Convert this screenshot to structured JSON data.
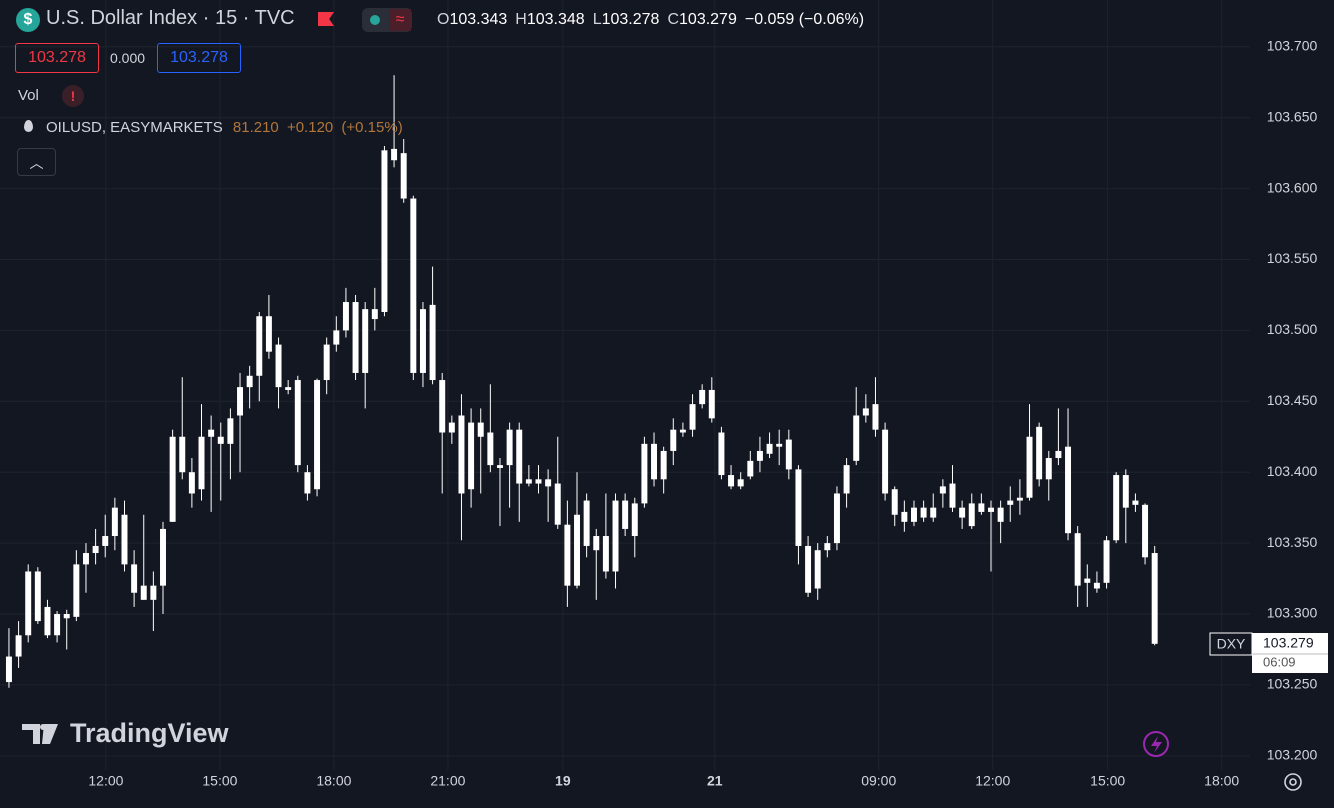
{
  "chart_data": {
    "type": "candlestick",
    "title": "U.S. Dollar Index · 15 · TVC",
    "color": "#ffffff",
    "grid": true,
    "open": [
      103.252,
      103.27,
      103.285,
      103.33,
      103.285,
      103.285,
      103.3,
      103.298,
      103.335,
      103.343,
      103.348,
      103.355,
      103.37,
      103.335,
      103.32,
      103.31,
      103.32,
      103.365,
      103.425,
      103.4,
      103.388,
      103.425,
      103.425,
      103.42,
      103.44,
      103.46,
      103.468,
      103.51,
      103.49,
      103.46,
      103.465,
      103.4,
      103.388,
      103.465,
      103.49,
      103.5,
      103.52,
      103.47,
      103.515,
      103.513,
      103.628,
      103.625,
      103.593,
      103.47,
      103.518,
      103.465,
      103.428,
      103.44,
      103.388,
      103.435,
      103.428,
      103.405,
      103.405,
      103.43,
      103.392,
      103.395,
      103.395,
      103.392,
      103.363,
      103.32,
      103.38,
      103.345,
      103.355,
      103.33,
      103.38,
      103.355,
      103.378,
      103.42,
      103.395,
      103.415,
      103.428,
      103.43,
      103.448,
      103.458,
      103.428,
      103.398,
      103.39,
      103.397,
      103.408,
      103.413,
      103.42,
      103.423,
      103.402,
      103.348,
      103.318,
      103.345,
      103.35,
      103.385,
      103.408,
      103.44,
      103.448,
      103.43,
      103.388,
      103.372,
      103.365,
      103.375,
      103.368,
      103.385,
      103.392,
      103.375,
      103.362,
      103.378,
      103.375,
      103.375,
      103.377,
      103.38,
      103.382,
      103.432,
      103.395,
      103.41,
      103.418,
      103.357,
      103.322,
      103.318,
      103.322,
      103.352,
      103.398,
      103.38,
      103.377,
      103.343
    ],
    "high": [
      103.29,
      103.295,
      103.335,
      103.333,
      103.31,
      103.302,
      103.303,
      103.345,
      103.35,
      103.36,
      103.37,
      103.382,
      103.38,
      103.345,
      103.37,
      103.33,
      103.365,
      103.43,
      103.467,
      103.41,
      103.448,
      103.44,
      103.435,
      103.445,
      103.47,
      103.475,
      103.513,
      103.525,
      103.495,
      103.465,
      103.468,
      103.405,
      103.466,
      103.495,
      103.51,
      103.53,
      103.525,
      103.52,
      103.53,
      103.63,
      103.68,
      103.635,
      103.595,
      103.52,
      103.545,
      103.47,
      103.44,
      103.455,
      103.445,
      103.445,
      103.462,
      103.41,
      103.435,
      103.435,
      103.405,
      103.405,
      103.402,
      103.425,
      103.38,
      103.4,
      103.385,
      103.36,
      103.385,
      103.385,
      103.385,
      103.382,
      103.425,
      103.428,
      103.418,
      103.438,
      103.435,
      103.455,
      103.462,
      103.467,
      103.432,
      103.405,
      103.4,
      103.415,
      103.425,
      103.428,
      103.43,
      103.43,
      103.405,
      103.355,
      103.35,
      103.355,
      103.39,
      103.41,
      103.46,
      103.455,
      103.467,
      103.435,
      103.39,
      103.38,
      103.38,
      103.38,
      103.385,
      103.395,
      103.405,
      103.38,
      103.385,
      103.385,
      103.38,
      103.38,
      103.39,
      103.395,
      103.448,
      103.435,
      103.415,
      103.445,
      103.445,
      103.362,
      103.335,
      103.33,
      103.355,
      103.4,
      103.402,
      103.385,
      103.378,
      103.348
    ],
    "low": [
      103.248,
      103.262,
      103.28,
      103.293,
      103.283,
      103.28,
      103.275,
      103.295,
      103.315,
      103.335,
      103.34,
      103.345,
      103.33,
      103.305,
      103.31,
      103.288,
      103.3,
      103.365,
      103.395,
      103.375,
      103.38,
      103.372,
      103.38,
      103.395,
      103.4,
      103.445,
      103.45,
      103.48,
      103.445,
      103.455,
      103.4,
      103.38,
      103.383,
      103.455,
      103.485,
      103.495,
      103.465,
      103.445,
      103.5,
      103.51,
      103.615,
      103.59,
      103.465,
      103.46,
      103.462,
      103.385,
      103.42,
      103.352,
      103.375,
      103.385,
      103.4,
      103.362,
      103.375,
      103.365,
      103.39,
      103.385,
      103.365,
      103.36,
      103.305,
      103.318,
      103.34,
      103.31,
      103.325,
      103.318,
      103.355,
      103.34,
      103.375,
      103.39,
      103.385,
      103.405,
      103.425,
      103.425,
      103.445,
      103.435,
      103.395,
      103.388,
      103.388,
      103.395,
      103.4,
      103.41,
      103.405,
      103.395,
      103.335,
      103.312,
      103.31,
      103.34,
      103.345,
      103.375,
      103.405,
      103.435,
      103.425,
      103.38,
      103.362,
      103.358,
      103.362,
      103.365,
      103.365,
      103.375,
      103.372,
      103.36,
      103.36,
      103.37,
      103.33,
      103.35,
      103.365,
      103.37,
      103.38,
      103.39,
      103.38,
      103.405,
      103.352,
      103.305,
      103.305,
      103.315,
      103.318,
      103.35,
      103.35,
      103.372,
      103.335,
      103.278
    ],
    "close": [
      103.27,
      103.285,
      103.33,
      103.295,
      103.305,
      103.3,
      103.297,
      103.335,
      103.343,
      103.348,
      103.355,
      103.375,
      103.335,
      103.315,
      103.31,
      103.32,
      103.36,
      103.425,
      103.4,
      103.385,
      103.425,
      103.43,
      103.42,
      103.438,
      103.46,
      103.468,
      103.51,
      103.485,
      103.46,
      103.458,
      103.405,
      103.385,
      103.465,
      103.49,
      103.5,
      103.52,
      103.47,
      103.515,
      103.508,
      103.627,
      103.62,
      103.593,
      103.47,
      103.515,
      103.465,
      103.428,
      103.435,
      103.385,
      103.435,
      103.425,
      103.405,
      103.403,
      103.43,
      103.392,
      103.395,
      103.392,
      103.39,
      103.363,
      103.32,
      103.37,
      103.348,
      103.355,
      103.33,
      103.38,
      103.36,
      103.378,
      103.42,
      103.395,
      103.415,
      103.43,
      103.43,
      103.448,
      103.458,
      103.438,
      103.398,
      103.39,
      103.395,
      103.408,
      103.415,
      103.42,
      103.418,
      103.402,
      103.348,
      103.315,
      103.345,
      103.35,
      103.385,
      103.405,
      103.44,
      103.445,
      103.43,
      103.385,
      103.37,
      103.365,
      103.375,
      103.368,
      103.375,
      103.39,
      103.375,
      103.368,
      103.378,
      103.372,
      103.372,
      103.365,
      103.38,
      103.382,
      103.425,
      103.395,
      103.41,
      103.415,
      103.357,
      103.32,
      103.325,
      103.322,
      103.352,
      103.398,
      103.375,
      103.377,
      103.34,
      103.279
    ],
    "xlim": [
      -0.93,
      128.9
    ],
    "xticks": [
      {
        "value": 10.07,
        "label": "12:00"
      },
      {
        "value": 21.91,
        "label": "15:00"
      },
      {
        "value": 33.75,
        "label": "18:00"
      },
      {
        "value": 45.59,
        "label": "21:00"
      },
      {
        "value": 57.53,
        "label": "19"
      },
      {
        "value": 73.31,
        "label": "21"
      },
      {
        "value": 90.34,
        "label": "09:00"
      },
      {
        "value": 102.18,
        "label": "12:00"
      },
      {
        "value": 114.12,
        "label": "15:00"
      },
      {
        "value": 125.96,
        "label": "18:00"
      }
    ],
    "ylim": [
      103.19,
      103.733
    ],
    "yticks": [
      {
        "value": 103.2,
        "label": "103.200"
      },
      {
        "value": 103.25,
        "label": "103.250"
      },
      {
        "value": 103.3,
        "label": "103.300"
      },
      {
        "value": 103.35,
        "label": "103.350"
      },
      {
        "value": 103.4,
        "label": "103.400"
      },
      {
        "value": 103.45,
        "label": "103.450"
      },
      {
        "value": 103.5,
        "label": "103.500"
      },
      {
        "value": 103.55,
        "label": "103.550"
      },
      {
        "value": 103.6,
        "label": "103.600"
      },
      {
        "value": 103.65,
        "label": "103.650"
      },
      {
        "value": 103.7,
        "label": "103.700"
      }
    ]
  },
  "ui": {
    "ohlc": [
      {
        "label": "O",
        "value": "103.343"
      },
      {
        "label": "H",
        "value": "103.348"
      },
      {
        "label": "L",
        "value": "103.278"
      },
      {
        "label": "C",
        "value": "103.279"
      }
    ],
    "change": "−0.059 (−0.06%)",
    "badges": [
      "103.278",
      "0.000",
      "103.278"
    ],
    "vol": "Vol",
    "alert": "!",
    "overlay": {
      "name": "OILUSD, EASYMARKETS",
      "price": "81.210",
      "change": "+0.120",
      "pct": "(+0.15%)"
    },
    "price_tag": {
      "symbol": "DXY",
      "price": "103.279",
      "countdown": "06:09"
    },
    "logo": "TradingView",
    "dollar": "$"
  }
}
